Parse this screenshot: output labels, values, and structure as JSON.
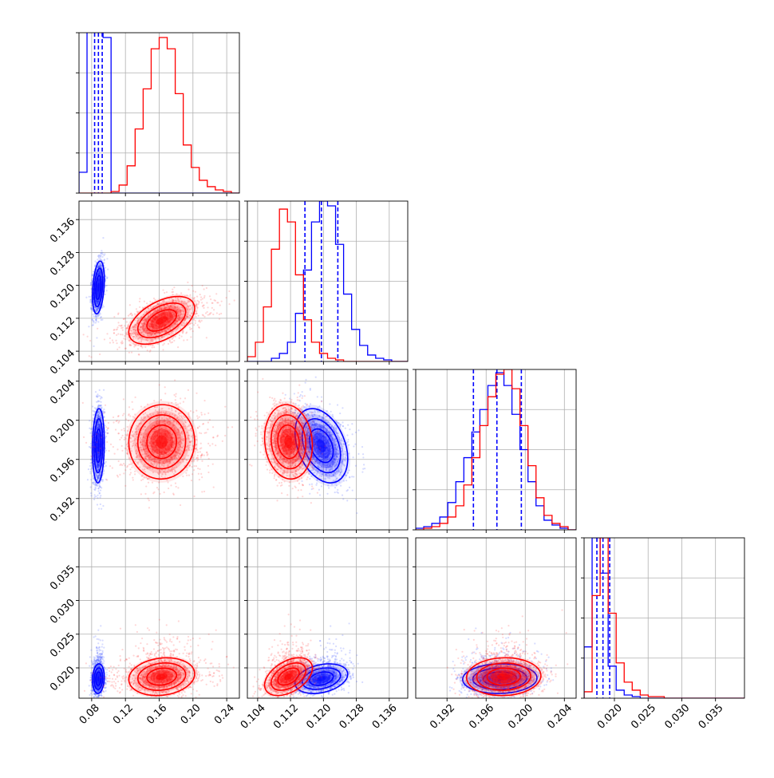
{
  "chart_data": {
    "type": "corner",
    "parameters": [
      {
        "range": [
          0.065,
          0.255
        ],
        "ticks": [
          0.08,
          0.12,
          0.16,
          0.2,
          0.24
        ],
        "tick_labels": [
          "0.08",
          "0.12",
          "0.16",
          "0.20",
          "0.24"
        ]
      },
      {
        "range": [
          0.1015,
          0.1405
        ],
        "ticks": [
          0.104,
          0.112,
          0.12,
          0.128,
          0.136
        ],
        "tick_labels": [
          "0.104",
          "0.112",
          "0.120",
          "0.128",
          "0.136"
        ]
      },
      {
        "range": [
          0.1888,
          0.2052
        ],
        "ticks": [
          0.192,
          0.196,
          0.2,
          0.204
        ],
        "tick_labels": [
          "0.192",
          "0.196",
          "0.200",
          "0.204"
        ]
      },
      {
        "range": [
          0.0155,
          0.0393
        ],
        "ticks": [
          0.02,
          0.025,
          0.03,
          0.035
        ],
        "tick_labels": [
          "0.020",
          "0.025",
          "0.030",
          "0.035"
        ]
      }
    ],
    "series": [
      {
        "color": "#0000ff",
        "means": [
          0.088,
          0.1195,
          0.1974,
          0.0184
        ],
        "sigmas": [
          0.0035,
          0.0032,
          0.0019,
          0.0011
        ],
        "correlations": [
          [
            0,
            1,
            0.3
          ],
          [
            0,
            2,
            0.1
          ],
          [
            0,
            3,
            0.1
          ],
          [
            1,
            2,
            -0.35
          ],
          [
            1,
            3,
            0.3
          ],
          [
            2,
            3,
            0.05
          ]
        ],
        "quantiles": [
          [
            0.0835,
            0.088,
            0.0925
          ],
          [
            0.1155,
            0.1195,
            0.1235
          ],
          [
            0.1947,
            0.1971,
            0.1996
          ],
          [
            0.0174,
            0.0183,
            0.0193
          ]
        ],
        "histograms": [
          {
            "edges": [
              0.065,
              0.0745,
              0.084,
              0.0935,
              0.103,
              0.1125,
              0.122,
              0.1315,
              0.141,
              0.1505,
              0.16,
              0.1695,
              0.179,
              0.1885,
              0.198,
              0.2075,
              0.217,
              0.2265,
              0.236,
              0.2455,
              0.255
            ],
            "counts": [
              0.13,
              1.6,
              1.6,
              0.97,
              0.0,
              0,
              0,
              0,
              0,
              0,
              0,
              0,
              0,
              0,
              0,
              0,
              0,
              0,
              0,
              0
            ]
          },
          {
            "edges": [
              0.1015,
              0.10345,
              0.1054,
              0.10735,
              0.1093,
              0.11125,
              0.1132,
              0.11515,
              0.1171,
              0.11905,
              0.121,
              0.12295,
              0.1249,
              0.12685,
              0.1288,
              0.13075,
              0.1327,
              0.13465,
              0.1366,
              0.13855,
              0.1405
            ],
            "counts": [
              0.0,
              0.0,
              0.0,
              0.02,
              0.05,
              0.12,
              0.3,
              0.57,
              0.87,
              1.0,
              0.97,
              0.73,
              0.42,
              0.2,
              0.1,
              0.04,
              0.02,
              0.01,
              0.0,
              0.0
            ]
          },
          {
            "edges": [
              0.1888,
              0.18962,
              0.19044,
              0.19126,
              0.19208,
              0.1929,
              0.19372,
              0.19454,
              0.19536,
              0.19618,
              0.197,
              0.19782,
              0.19864,
              0.19946,
              0.20028,
              0.2011,
              0.20192,
              0.20274,
              0.20356,
              0.20438,
              0.2052
            ],
            "counts": [
              0.01,
              0.02,
              0.04,
              0.08,
              0.17,
              0.3,
              0.45,
              0.61,
              0.75,
              0.9,
              0.98,
              0.9,
              0.72,
              0.5,
              0.3,
              0.15,
              0.06,
              0.03,
              0.01,
              0.0
            ]
          },
          {
            "edges": [
              0.0155,
              0.01669,
              0.01788,
              0.01907,
              0.02026,
              0.02145,
              0.02264,
              0.02383,
              0.02502,
              0.02621,
              0.0274,
              0.02859,
              0.02978,
              0.03097,
              0.03216,
              0.03335,
              0.03454,
              0.03573,
              0.03692,
              0.03811,
              0.0393
            ],
            "counts": [
              0.32,
              1.0,
              0.78,
              0.2,
              0.05,
              0.02,
              0.01,
              0.0,
              0.0,
              0.0,
              0,
              0,
              0,
              0,
              0,
              0,
              0,
              0,
              0,
              0
            ]
          }
        ]
      },
      {
        "color": "#ff0000",
        "means": [
          0.163,
          0.1115,
          0.1978,
          0.0187
        ],
        "sigmas": [
          0.0195,
          0.0029,
          0.0019,
          0.0014
        ],
        "correlations": [
          [
            0,
            1,
            0.5
          ],
          [
            0,
            2,
            0.02
          ],
          [
            0,
            3,
            0.15
          ],
          [
            1,
            2,
            -0.1
          ],
          [
            1,
            3,
            0.45
          ],
          [
            2,
            3,
            0.05
          ]
        ],
        "histograms": [
          {
            "edges": [
              0.065,
              0.0745,
              0.084,
              0.0935,
              0.103,
              0.1125,
              0.122,
              0.1315,
              0.141,
              0.1505,
              0.16,
              0.1695,
              0.179,
              0.1885,
              0.198,
              0.2075,
              0.217,
              0.2265,
              0.236,
              0.2455,
              0.255
            ],
            "counts": [
              0,
              0,
              0,
              0.0,
              0.01,
              0.05,
              0.17,
              0.4,
              0.65,
              0.9,
              0.97,
              0.9,
              0.62,
              0.3,
              0.16,
              0.08,
              0.04,
              0.02,
              0.01,
              0.0
            ]
          },
          {
            "edges": [
              0.1015,
              0.10345,
              0.1054,
              0.10735,
              0.1093,
              0.11125,
              0.1132,
              0.11515,
              0.1171,
              0.11905,
              0.121,
              0.12295,
              0.1249,
              0.12685,
              0.1288,
              0.13075,
              0.1327,
              0.13465,
              0.1366,
              0.13855,
              0.1405
            ],
            "counts": [
              0.03,
              0.12,
              0.34,
              0.7,
              0.95,
              0.87,
              0.54,
              0.26,
              0.12,
              0.05,
              0.02,
              0.01,
              0.0,
              0.0,
              0.0,
              0,
              0,
              0,
              0,
              0
            ]
          },
          {
            "edges": [
              0.1888,
              0.18962,
              0.19044,
              0.19126,
              0.19208,
              0.1929,
              0.19372,
              0.19454,
              0.19536,
              0.19618,
              0.197,
              0.19782,
              0.19864,
              0.19946,
              0.20028,
              0.2011,
              0.20192,
              0.20274,
              0.20356,
              0.20438,
              0.2052
            ],
            "counts": [
              0.0,
              0.01,
              0.02,
              0.04,
              0.08,
              0.15,
              0.28,
              0.45,
              0.65,
              0.83,
              0.97,
              1.0,
              0.88,
              0.65,
              0.4,
              0.2,
              0.09,
              0.04,
              0.02,
              0.0
            ]
          },
          {
            "edges": [
              0.0155,
              0.01669,
              0.01788,
              0.01907,
              0.02026,
              0.02145,
              0.02264,
              0.02383,
              0.02502,
              0.02621,
              0.0274,
              0.02859,
              0.02978,
              0.03097,
              0.03216,
              0.03335,
              0.03454,
              0.03573,
              0.03692,
              0.03811,
              0.0393
            ],
            "counts": [
              0.04,
              0.64,
              1.0,
              0.53,
              0.22,
              0.1,
              0.05,
              0.02,
              0.01,
              0.01,
              0.0,
              0.0,
              0,
              0,
              0,
              0,
              0,
              0,
              0,
              0
            ]
          }
        ]
      }
    ],
    "grid": true,
    "title": "",
    "xlabel": "",
    "ylabel": ""
  }
}
